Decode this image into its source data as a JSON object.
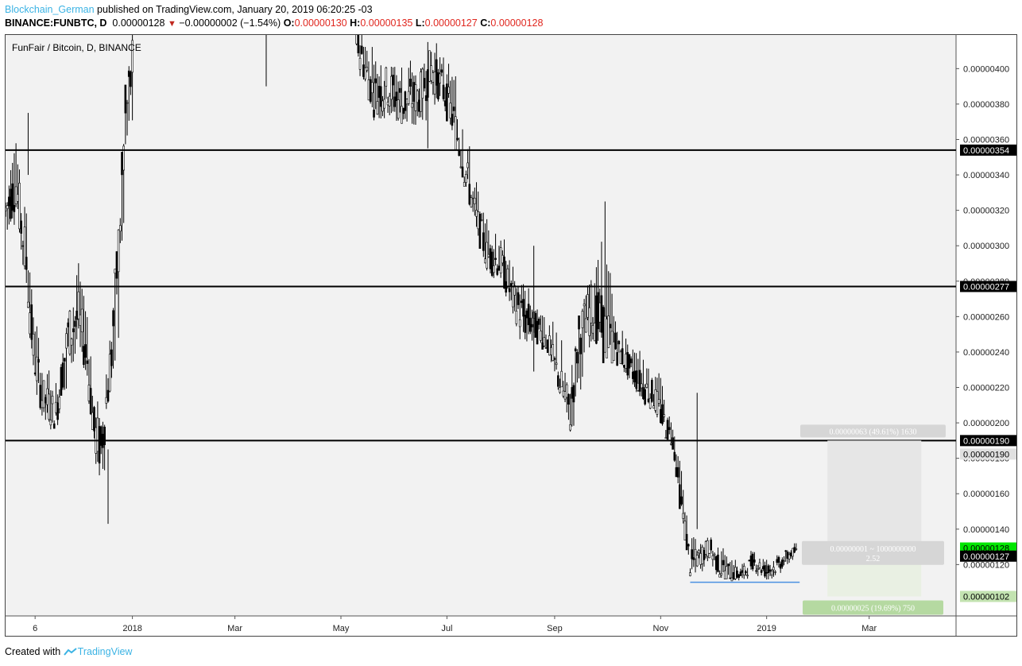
{
  "header": {
    "author": "Blockchain_German",
    "published": "published on TradingView.com, January 20, 2019 06:20:25 -03",
    "symbol": "BINANCE:FUNBTC, D",
    "last": "0.00000128",
    "change": "−0.00000002 (−1.54%)",
    "o_label": "O:",
    "o": "0.00000130",
    "h_label": "H:",
    "h": "0.00000135",
    "l_label": "L:",
    "l": "0.00000127",
    "c_label": "C:",
    "c": "0.00000128"
  },
  "footer": {
    "created_with": "Created with",
    "brand": "TradingView"
  },
  "chart_data": {
    "type": "candlestick",
    "title": "FunFair / Bitcoin, D, BINANCE",
    "ylim": [
      9.1e-07,
      4.19e-06
    ],
    "y_ticks": [
      "0.00000400",
      "0.00000380",
      "0.00000360",
      "0.00000340",
      "0.00000320",
      "0.00000300",
      "0.00000280",
      "0.00000260",
      "0.00000240",
      "0.00000220",
      "0.00000200",
      "0.00000180",
      "0.00000160",
      "0.00000140",
      "0.00000120"
    ],
    "x_ticks": [
      "6",
      "2018",
      "Mar",
      "May",
      "Jul",
      "Sep",
      "Nov",
      "2019",
      "Mar"
    ],
    "x_tick_dates": [
      "2017-11-06",
      "2018-01-01",
      "2018-03-01",
      "2018-05-01",
      "2018-07-01",
      "2018-09-01",
      "2018-11-01",
      "2019-01-01",
      "2019-03-01"
    ],
    "xlim": [
      "2017-10-20",
      "2019-04-20"
    ],
    "horizontal_levels": [
      {
        "value": 3.54e-06,
        "label": "0.00000354"
      },
      {
        "value": 2.77e-06,
        "label": "0.00000277"
      },
      {
        "value": 1.9e-06,
        "label": "0.00000190"
      }
    ],
    "support_line": {
      "value": 1.1e-06,
      "from": "2018-11-18",
      "to": "2019-01-20",
      "color": "#4a90e2"
    },
    "price_labels": [
      {
        "value": 1.9e-06,
        "label": "0.00000190",
        "style": "light"
      },
      {
        "value": 1.28e-06,
        "label": "0.00000128",
        "style": "green"
      },
      {
        "value": 1.27e-06,
        "label": "0.00000127",
        "style": "dark"
      },
      {
        "value": 1.02e-06,
        "label": "0.00000102",
        "style": "lightgreen"
      }
    ],
    "position_tool": {
      "from": "2019-02-05",
      "to": "2019-03-31",
      "entry": 1.27e-06,
      "target": 1.9e-06,
      "stop": 1.02e-06,
      "target_text": "0.00000063 (49.61%) 1630",
      "info_text": "0.00000001 ~ 1000000000",
      "ratio_text": "2.52",
      "stop_text": "0.00000025 (19.69%) 750"
    },
    "series_anchors": [
      [
        "2017-10-20",
        3.3,
        3.55,
        3.0,
        3.2
      ],
      [
        "2017-10-26",
        3.4,
        3.7,
        3.1,
        3.35
      ],
      [
        "2017-11-01",
        3.1,
        3.4,
        2.7,
        2.9
      ],
      [
        "2017-11-05",
        2.6,
        2.8,
        2.2,
        2.4
      ],
      [
        "2017-11-10",
        2.3,
        2.45,
        2.0,
        2.15
      ],
      [
        "2017-11-18",
        2.1,
        2.3,
        1.9,
        2.05
      ],
      [
        "2017-11-25",
        2.4,
        2.7,
        2.1,
        2.5
      ],
      [
        "2017-12-01",
        2.8,
        3.0,
        2.4,
        2.6
      ],
      [
        "2017-12-06",
        2.5,
        2.75,
        2.2,
        2.35
      ],
      [
        "2017-12-10",
        2.2,
        2.4,
        1.8,
        1.95
      ],
      [
        "2017-12-14",
        1.9,
        2.1,
        1.45,
        1.85
      ],
      [
        "2017-12-20",
        2.0,
        2.6,
        1.9,
        2.4
      ],
      [
        "2017-12-24",
        2.5,
        3.1,
        2.3,
        3.0
      ],
      [
        "2017-12-28",
        3.2,
        3.9,
        3.0,
        3.7
      ],
      [
        "2018-01-02",
        3.9,
        4.3,
        3.7,
        4.1
      ],
      [
        "2018-05-10",
        4.2,
        4.4,
        4.0,
        4.15
      ],
      [
        "2018-05-20",
        4.0,
        4.2,
        3.7,
        3.85
      ],
      [
        "2018-05-28",
        3.8,
        4.1,
        3.6,
        3.9
      ],
      [
        "2018-06-05",
        3.9,
        4.2,
        3.65,
        3.8
      ],
      [
        "2018-06-15",
        3.7,
        4.0,
        3.55,
        3.85
      ],
      [
        "2018-06-22",
        3.9,
        4.2,
        3.7,
        4.0
      ],
      [
        "2018-06-28",
        4.0,
        4.2,
        3.8,
        3.9
      ],
      [
        "2018-07-05",
        3.85,
        4.1,
        3.6,
        3.7
      ],
      [
        "2018-07-12",
        3.65,
        3.8,
        3.3,
        3.4
      ],
      [
        "2018-07-18",
        3.3,
        3.45,
        3.05,
        3.15
      ],
      [
        "2018-07-24",
        3.15,
        3.25,
        2.85,
        2.95
      ],
      [
        "2018-08-01",
        3.0,
        3.15,
        2.75,
        2.9
      ],
      [
        "2018-08-08",
        2.85,
        3.0,
        2.6,
        2.7
      ],
      [
        "2018-08-14",
        2.7,
        2.85,
        2.3,
        2.6
      ],
      [
        "2018-08-20",
        2.6,
        2.8,
        2.45,
        2.55
      ],
      [
        "2018-08-28",
        2.55,
        2.7,
        2.4,
        2.45
      ],
      [
        "2018-09-05",
        2.4,
        2.55,
        2.1,
        2.2
      ],
      [
        "2018-09-10",
        2.2,
        2.35,
        1.85,
        2.05
      ],
      [
        "2018-09-15",
        2.1,
        2.55,
        2.0,
        2.5
      ],
      [
        "2018-09-22",
        2.5,
        2.95,
        2.4,
        2.65
      ],
      [
        "2018-09-30",
        2.6,
        3.25,
        2.45,
        2.5
      ],
      [
        "2018-10-08",
        2.45,
        2.6,
        2.3,
        2.4
      ],
      [
        "2018-10-15",
        2.35,
        2.5,
        2.2,
        2.3
      ],
      [
        "2018-10-22",
        2.3,
        2.45,
        2.1,
        2.2
      ],
      [
        "2018-10-28",
        2.25,
        2.4,
        2.05,
        2.15
      ],
      [
        "2018-11-03",
        2.15,
        2.3,
        1.95,
        2.0
      ],
      [
        "2018-11-08",
        2.0,
        2.05,
        1.85,
        1.9
      ],
      [
        "2018-11-12",
        1.85,
        1.9,
        1.55,
        1.6
      ],
      [
        "2018-11-15",
        1.55,
        1.65,
        1.35,
        1.4
      ],
      [
        "2018-11-18",
        1.35,
        1.45,
        1.12,
        1.2
      ],
      [
        "2018-11-24",
        1.2,
        1.35,
        1.12,
        1.25
      ],
      [
        "2018-11-29",
        1.25,
        1.4,
        1.15,
        1.3
      ],
      [
        "2018-12-05",
        1.25,
        1.35,
        1.12,
        1.18
      ],
      [
        "2018-12-12",
        1.18,
        1.28,
        1.1,
        1.15
      ],
      [
        "2018-12-18",
        1.15,
        1.25,
        1.09,
        1.14
      ],
      [
        "2018-12-24",
        1.16,
        1.3,
        1.12,
        1.22
      ],
      [
        "2019-01-01",
        1.18,
        1.28,
        1.1,
        1.16
      ],
      [
        "2019-01-08",
        1.17,
        1.27,
        1.1,
        1.2
      ],
      [
        "2019-01-14",
        1.2,
        1.3,
        1.15,
        1.26
      ],
      [
        "2019-01-19",
        1.3,
        1.35,
        1.27,
        1.28
      ]
    ]
  }
}
